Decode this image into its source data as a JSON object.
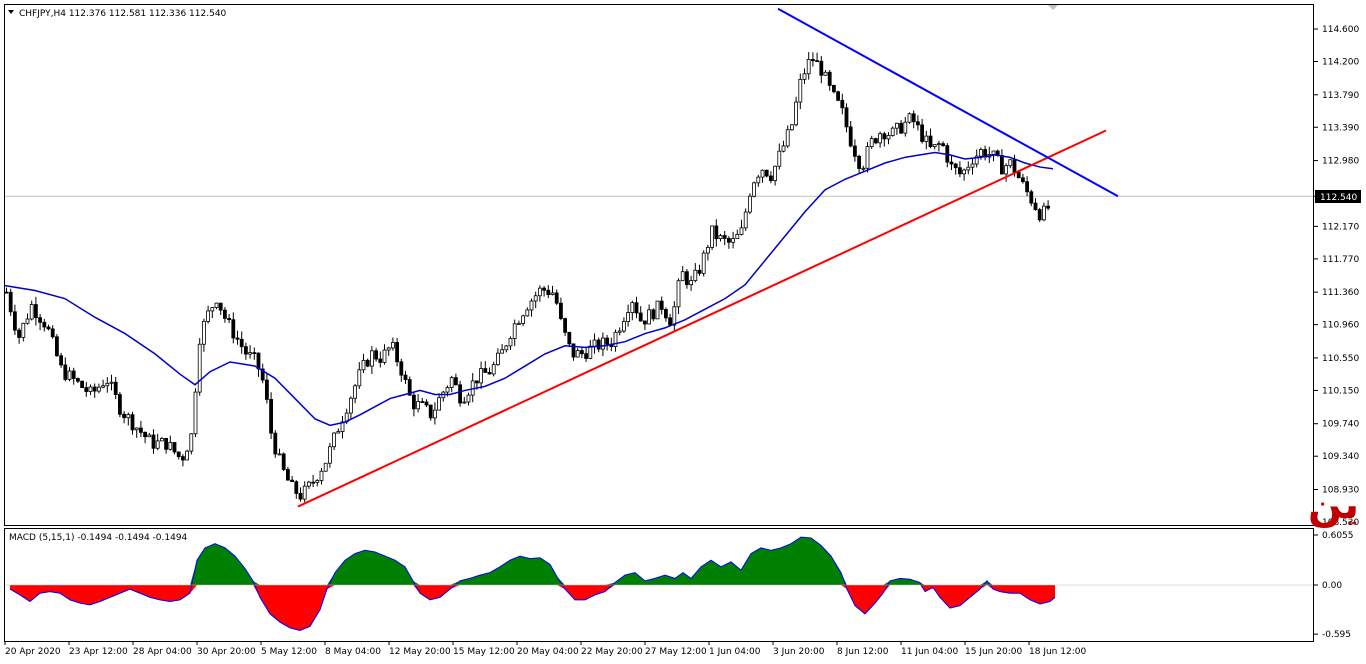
{
  "header": {
    "symbol_line": "CHFJPY,H4  112.376 112.581 112.336 112.540"
  },
  "macd_header": {
    "label": "MACD (5,15,1) -0.1494 -0.1494 -0.1494"
  },
  "watermark": "فرنك ين",
  "current_price_label": "112.540",
  "chart_data": [
    {
      "type": "candlestick",
      "symbol": "CHFJPY",
      "timeframe": "H4",
      "ohlc_header": {
        "open": 112.376,
        "high": 112.581,
        "low": 112.336,
        "close": 112.54
      },
      "ylim": [
        108.53,
        114.8
      ],
      "y_ticks": [
        "114.600",
        "114.200",
        "113.790",
        "113.390",
        "112.980",
        "112.540",
        "112.170",
        "111.770",
        "111.360",
        "110.960",
        "110.550",
        "110.150",
        "109.740",
        "109.340",
        "108.930",
        "108.530"
      ],
      "x_ticks": [
        "20 Apr 2020",
        "23 Apr 12:00",
        "28 Apr 04:00",
        "30 Apr 20:00",
        "5 May 12:00",
        "8 May 04:00",
        "12 May 20:00",
        "15 May 12:00",
        "20 May 04:00",
        "22 May 20:00",
        "27 May 12:00",
        "1 Jun 04:00",
        "3 Jun 20:00",
        "8 Jun 12:00",
        "11 Jun 04:00",
        "15 Jun 20:00",
        "18 Jun 12:00"
      ],
      "last_price": 112.54,
      "close_path": [
        [
          0,
          111.36
        ],
        [
          12,
          110.8
        ],
        [
          25,
          111.2
        ],
        [
          40,
          110.95
        ],
        [
          55,
          110.4
        ],
        [
          70,
          110.25
        ],
        [
          85,
          110.1
        ],
        [
          100,
          110.3
        ],
        [
          115,
          109.9
        ],
        [
          130,
          109.7
        ],
        [
          145,
          109.5
        ],
        [
          160,
          109.5
        ],
        [
          175,
          109.3
        ],
        [
          185,
          109.6
        ],
        [
          193,
          110.8
        ],
        [
          200,
          111.05
        ],
        [
          210,
          111.3
        ],
        [
          220,
          111.0
        ],
        [
          230,
          110.8
        ],
        [
          240,
          110.6
        ],
        [
          250,
          110.5
        ],
        [
          258,
          110.2
        ],
        [
          265,
          109.6
        ],
        [
          275,
          109.2
        ],
        [
          285,
          108.95
        ],
        [
          295,
          108.85
        ],
        [
          305,
          109.0
        ],
        [
          320,
          109.3
        ],
        [
          335,
          109.8
        ],
        [
          345,
          110.1
        ],
        [
          355,
          110.4
        ],
        [
          365,
          110.6
        ],
        [
          375,
          110.55
        ],
        [
          385,
          110.7
        ],
        [
          395,
          110.4
        ],
        [
          405,
          110.0
        ],
        [
          415,
          109.95
        ],
        [
          425,
          109.85
        ],
        [
          435,
          110.1
        ],
        [
          445,
          110.3
        ],
        [
          455,
          110.05
        ],
        [
          470,
          110.3
        ],
        [
          485,
          110.4
        ],
        [
          495,
          110.6
        ],
        [
          505,
          110.9
        ],
        [
          520,
          111.2
        ],
        [
          535,
          111.4
        ],
        [
          548,
          111.35
        ],
        [
          555,
          110.95
        ],
        [
          565,
          110.6
        ],
        [
          575,
          110.6
        ],
        [
          590,
          110.7
        ],
        [
          605,
          110.75
        ],
        [
          615,
          111.0
        ],
        [
          625,
          111.3
        ],
        [
          635,
          111.0
        ],
        [
          645,
          111.1
        ],
        [
          655,
          111.2
        ],
        [
          665,
          111.0
        ],
        [
          675,
          111.6
        ],
        [
          685,
          111.45
        ],
        [
          695,
          111.7
        ],
        [
          705,
          112.1
        ],
        [
          715,
          112.0
        ],
        [
          725,
          111.95
        ],
        [
          735,
          112.1
        ],
        [
          745,
          112.7
        ],
        [
          755,
          112.9
        ],
        [
          765,
          112.8
        ],
        [
          775,
          113.1
        ],
        [
          785,
          113.4
        ],
        [
          795,
          114.0
        ],
        [
          805,
          114.25
        ],
        [
          815,
          114.1
        ],
        [
          825,
          113.8
        ],
        [
          835,
          113.6
        ],
        [
          845,
          113.2
        ],
        [
          855,
          112.9
        ],
        [
          865,
          113.2
        ],
        [
          875,
          113.35
        ],
        [
          885,
          113.3
        ],
        [
          895,
          113.4
        ],
        [
          905,
          113.5
        ],
        [
          915,
          113.3
        ],
        [
          925,
          113.1
        ],
        [
          935,
          113.2
        ],
        [
          945,
          112.9
        ],
        [
          955,
          112.8
        ],
        [
          965,
          113.0
        ],
        [
          975,
          113.1
        ],
        [
          985,
          113.05
        ],
        [
          995,
          112.9
        ],
        [
          1005,
          112.95
        ],
        [
          1015,
          112.7
        ],
        [
          1025,
          112.5
        ],
        [
          1035,
          112.3
        ],
        [
          1045,
          112.45
        ],
        [
          1050,
          112.54
        ]
      ],
      "ma_path": [
        [
          0,
          111.44
        ],
        [
          30,
          111.38
        ],
        [
          60,
          111.28
        ],
        [
          90,
          111.05
        ],
        [
          120,
          110.85
        ],
        [
          150,
          110.6
        ],
        [
          175,
          110.35
        ],
        [
          190,
          110.22
        ],
        [
          205,
          110.38
        ],
        [
          225,
          110.5
        ],
        [
          250,
          110.45
        ],
        [
          270,
          110.3
        ],
        [
          290,
          110.05
        ],
        [
          310,
          109.8
        ],
        [
          325,
          109.72
        ],
        [
          340,
          109.76
        ],
        [
          355,
          109.85
        ],
        [
          370,
          109.95
        ],
        [
          385,
          110.05
        ],
        [
          400,
          110.1
        ],
        [
          415,
          110.15
        ],
        [
          430,
          110.1
        ],
        [
          445,
          110.1
        ],
        [
          460,
          110.15
        ],
        [
          480,
          110.2
        ],
        [
          500,
          110.3
        ],
        [
          520,
          110.45
        ],
        [
          540,
          110.6
        ],
        [
          560,
          110.7
        ],
        [
          580,
          110.68
        ],
        [
          600,
          110.7
        ],
        [
          620,
          110.75
        ],
        [
          640,
          110.85
        ],
        [
          660,
          110.92
        ],
        [
          680,
          111.02
        ],
        [
          700,
          111.15
        ],
        [
          720,
          111.28
        ],
        [
          740,
          111.45
        ],
        [
          760,
          111.75
        ],
        [
          780,
          112.05
        ],
        [
          800,
          112.35
        ],
        [
          820,
          112.62
        ],
        [
          840,
          112.75
        ],
        [
          860,
          112.85
        ],
        [
          880,
          112.95
        ],
        [
          900,
          113.02
        ],
        [
          915,
          113.05
        ],
        [
          930,
          113.08
        ],
        [
          945,
          113.05
        ],
        [
          960,
          113.0
        ],
        [
          975,
          113.02
        ],
        [
          990,
          113.05
        ],
        [
          1005,
          113.02
        ],
        [
          1020,
          112.95
        ],
        [
          1035,
          112.9
        ],
        [
          1048,
          112.88
        ]
      ],
      "trendlines": [
        {
          "color": "#ff0000",
          "from": [
            298,
            108.72
          ],
          "to": [
            1106,
            113.35
          ]
        },
        {
          "color": "#0000ff",
          "from": [
            778,
            114.85
          ],
          "to": [
            1118,
            112.54
          ]
        }
      ]
    },
    {
      "type": "area",
      "name": "MACD (5,15,1)",
      "values_text": "-0.1494 -0.1494 -0.1494",
      "ylim": [
        -0.6,
        0.65
      ],
      "y_ticks": [
        "0.6055",
        "0.00",
        "-0.595"
      ],
      "positive_color": "#008000",
      "negative_color": "#ff0000",
      "series": [
        [
          5,
          -0.05
        ],
        [
          15,
          -0.12
        ],
        [
          25,
          -0.2
        ],
        [
          35,
          -0.1
        ],
        [
          45,
          -0.08
        ],
        [
          55,
          -0.1
        ],
        [
          65,
          -0.18
        ],
        [
          75,
          -0.22
        ],
        [
          85,
          -0.24
        ],
        [
          95,
          -0.2
        ],
        [
          105,
          -0.15
        ],
        [
          115,
          -0.1
        ],
        [
          125,
          -0.05
        ],
        [
          135,
          -0.1
        ],
        [
          145,
          -0.15
        ],
        [
          155,
          -0.18
        ],
        [
          165,
          -0.2
        ],
        [
          175,
          -0.18
        ],
        [
          185,
          -0.1
        ],
        [
          192,
          0.3
        ],
        [
          200,
          0.45
        ],
        [
          210,
          0.5
        ],
        [
          220,
          0.45
        ],
        [
          230,
          0.35
        ],
        [
          240,
          0.2
        ],
        [
          248,
          0.05
        ],
        [
          255,
          -0.15
        ],
        [
          265,
          -0.35
        ],
        [
          275,
          -0.45
        ],
        [
          285,
          -0.52
        ],
        [
          295,
          -0.55
        ],
        [
          305,
          -0.5
        ],
        [
          315,
          -0.3
        ],
        [
          322,
          -0.05
        ],
        [
          330,
          0.15
        ],
        [
          340,
          0.3
        ],
        [
          350,
          0.38
        ],
        [
          360,
          0.42
        ],
        [
          370,
          0.4
        ],
        [
          380,
          0.35
        ],
        [
          390,
          0.3
        ],
        [
          400,
          0.22
        ],
        [
          408,
          0.05
        ],
        [
          415,
          -0.1
        ],
        [
          425,
          -0.18
        ],
        [
          435,
          -0.15
        ],
        [
          445,
          -0.05
        ],
        [
          455,
          0.05
        ],
        [
          465,
          0.08
        ],
        [
          475,
          0.12
        ],
        [
          485,
          0.15
        ],
        [
          495,
          0.22
        ],
        [
          505,
          0.3
        ],
        [
          515,
          0.35
        ],
        [
          525,
          0.32
        ],
        [
          535,
          0.33
        ],
        [
          545,
          0.25
        ],
        [
          552,
          0.1
        ],
        [
          560,
          -0.05
        ],
        [
          570,
          -0.18
        ],
        [
          580,
          -0.18
        ],
        [
          590,
          -0.12
        ],
        [
          600,
          -0.08
        ],
        [
          610,
          0.03
        ],
        [
          620,
          0.12
        ],
        [
          630,
          0.15
        ],
        [
          640,
          0.05
        ],
        [
          650,
          0.08
        ],
        [
          660,
          0.12
        ],
        [
          670,
          0.08
        ],
        [
          678,
          0.15
        ],
        [
          686,
          0.08
        ],
        [
          696,
          0.22
        ],
        [
          706,
          0.3
        ],
        [
          716,
          0.22
        ],
        [
          726,
          0.28
        ],
        [
          736,
          0.18
        ],
        [
          746,
          0.38
        ],
        [
          756,
          0.45
        ],
        [
          766,
          0.42
        ],
        [
          776,
          0.45
        ],
        [
          786,
          0.5
        ],
        [
          796,
          0.58
        ],
        [
          806,
          0.57
        ],
        [
          816,
          0.48
        ],
        [
          826,
          0.35
        ],
        [
          836,
          0.15
        ],
        [
          842,
          -0.05
        ],
        [
          850,
          -0.25
        ],
        [
          860,
          -0.35
        ],
        [
          870,
          -0.22
        ],
        [
          878,
          -0.1
        ],
        [
          885,
          0.05
        ],
        [
          895,
          0.08
        ],
        [
          905,
          0.07
        ],
        [
          915,
          0.03
        ],
        [
          920,
          -0.08
        ],
        [
          928,
          -0.03
        ],
        [
          935,
          -0.15
        ],
        [
          945,
          -0.28
        ],
        [
          955,
          -0.25
        ],
        [
          965,
          -0.15
        ],
        [
          975,
          -0.05
        ],
        [
          982,
          0.05
        ],
        [
          988,
          -0.05
        ],
        [
          995,
          -0.08
        ],
        [
          1005,
          -0.1
        ],
        [
          1015,
          -0.1
        ],
        [
          1025,
          -0.18
        ],
        [
          1035,
          -0.23
        ],
        [
          1045,
          -0.2
        ],
        [
          1050,
          -0.15
        ]
      ]
    }
  ],
  "colors": {
    "up_candle": "#ffffff",
    "down_candle": "#000000",
    "moving_average": "#0000cc",
    "grid_line": "#c0c0c0"
  }
}
